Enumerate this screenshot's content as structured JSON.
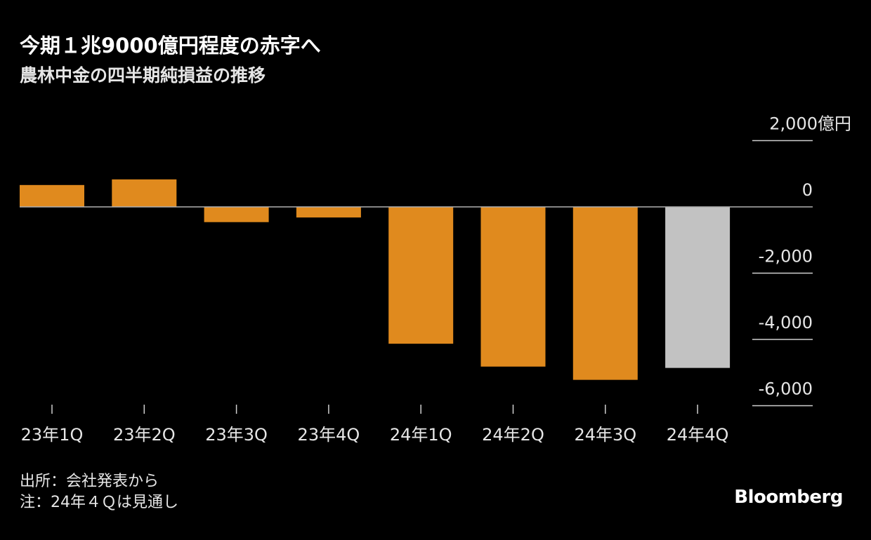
{
  "title": "今期１兆9000億円程度の赤字へ",
  "subtitle": "農林中金の四半期純損益の推移",
  "chart_data": {
    "type": "bar",
    "categories": [
      "23年1Q",
      "23年2Q",
      "23年3Q",
      "23年4Q",
      "24年1Q",
      "24年2Q",
      "24年3Q",
      "24年4Q"
    ],
    "values": [
      660,
      830,
      -460,
      -320,
      -4130,
      -4820,
      -5220,
      -4860
    ],
    "bar_status": [
      "actual",
      "actual",
      "actual",
      "actual",
      "actual",
      "actual",
      "actual",
      "forecast"
    ],
    "y_ticks": [
      2000,
      0,
      -2000,
      -4000,
      -6000
    ],
    "y_tick_labels": [
      "2,000億円",
      "0",
      "-2,000",
      "-4,000",
      "-6,000"
    ],
    "ylim": [
      -6000,
      2000
    ],
    "colors": {
      "actual": "#e08a1e",
      "forecast": "#c2c2c2",
      "zero_line": "#b0b0b0",
      "axis": "#cfcfcf"
    }
  },
  "source": {
    "line1": "出所：会社発表から",
    "line2": "注：24年４Ｑは見通し"
  },
  "brand": "Bloomberg"
}
